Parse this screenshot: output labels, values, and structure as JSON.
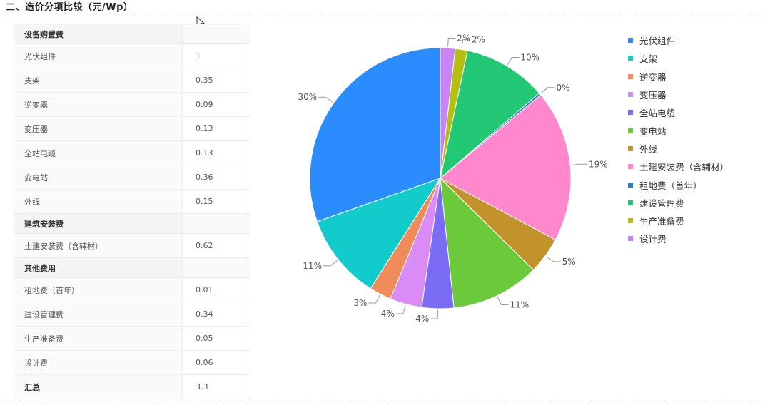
{
  "section": {
    "title": "二、造价分项比较（元/Wp）"
  },
  "table": {
    "rows": [
      {
        "kind": "group",
        "label": "设备购置费",
        "value": ""
      },
      {
        "kind": "item",
        "label": "光伏组件",
        "value": "1"
      },
      {
        "kind": "item",
        "label": "支架",
        "value": "0.35"
      },
      {
        "kind": "item",
        "label": "逆变器",
        "value": "0.09"
      },
      {
        "kind": "item",
        "label": "变压器",
        "value": "0.13"
      },
      {
        "kind": "item",
        "label": "全站电缆",
        "value": "0.13"
      },
      {
        "kind": "item",
        "label": "变电站",
        "value": "0.36"
      },
      {
        "kind": "item",
        "label": "外线",
        "value": "0.15"
      },
      {
        "kind": "group",
        "label": "建筑安装费",
        "value": ""
      },
      {
        "kind": "item",
        "label": "土建安装费（含辅材）",
        "value": "0.62"
      },
      {
        "kind": "group",
        "label": "其他费用",
        "value": ""
      },
      {
        "kind": "item",
        "label": "租地费（首年）",
        "value": "0.01"
      },
      {
        "kind": "item",
        "label": "建设管理费",
        "value": "0.34"
      },
      {
        "kind": "item",
        "label": "生产准备费",
        "value": "0.05"
      },
      {
        "kind": "item",
        "label": "设计费",
        "value": "0.06"
      },
      {
        "kind": "total",
        "label": "汇总",
        "value": "3.3"
      }
    ]
  },
  "chart_data": {
    "type": "pie",
    "legend_position": "right",
    "slices": [
      {
        "name": "光伏组件",
        "value": 1,
        "label": "30%",
        "color": "#2a8cff"
      },
      {
        "name": "支架",
        "value": 0.35,
        "label": "11%",
        "color": "#12cbcb"
      },
      {
        "name": "逆变器",
        "value": 0.09,
        "label": "3%",
        "color": "#f08c5a"
      },
      {
        "name": "变压器",
        "value": 0.13,
        "label": "4%",
        "color": "#d98cf5"
      },
      {
        "name": "全站电缆",
        "value": 0.13,
        "label": "4%",
        "color": "#7b6cf6"
      },
      {
        "name": "变电站",
        "value": 0.36,
        "label": "11%",
        "color": "#6cc93b"
      },
      {
        "name": "外线",
        "value": 0.15,
        "label": "5%",
        "color": "#c2922b"
      },
      {
        "name": "土建安装费（含辅材）",
        "value": 0.62,
        "label": "19%",
        "color": "#ff88cc"
      },
      {
        "name": "租地费（首年）",
        "value": 0.01,
        "label": "0%",
        "color": "#2a7fbf"
      },
      {
        "name": "建设管理费",
        "value": 0.34,
        "label": "10%",
        "color": "#22c873"
      },
      {
        "name": "生产准备费",
        "value": 0.05,
        "label": "2%",
        "color": "#b5bf12"
      },
      {
        "name": "设计费",
        "value": 0.06,
        "label": "2%",
        "color": "#c884f2"
      }
    ]
  }
}
